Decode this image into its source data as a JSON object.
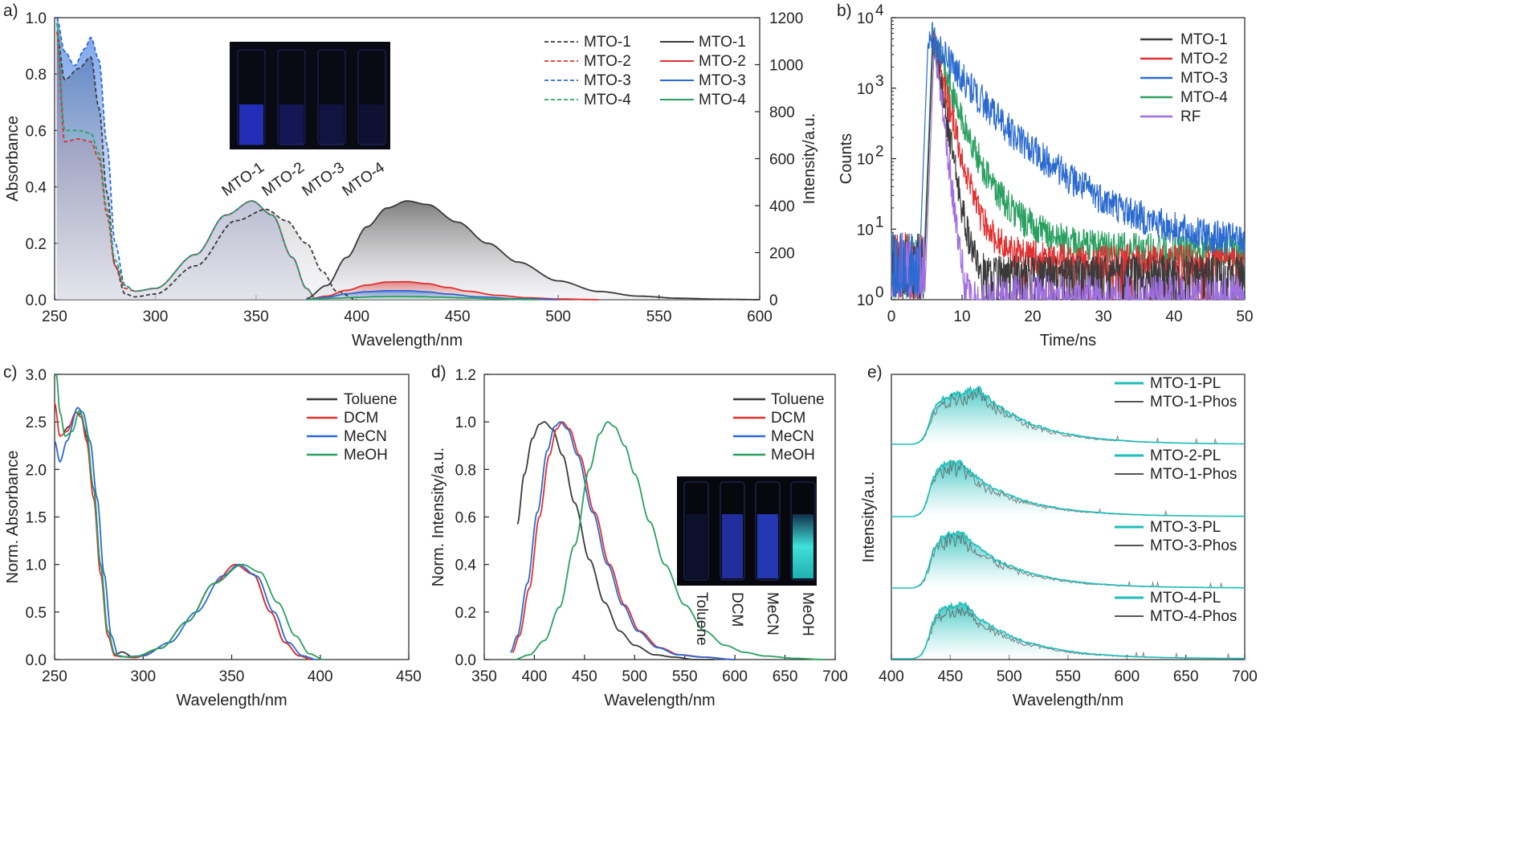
{
  "chart_data": [
    {
      "panel": "a)",
      "type": "line",
      "xlabel": "Wavelength/nm",
      "ylabel": "Absorbance",
      "y2label": "Intensity/a.u.",
      "xlim": [
        250,
        600
      ],
      "ylim": [
        0,
        1.0
      ],
      "y2lim": [
        0,
        1200
      ],
      "xticks": [
        250,
        300,
        350,
        400,
        450,
        500,
        550,
        600
      ],
      "yticks": [
        0.0,
        0.2,
        0.4,
        0.6,
        0.8,
        1.0
      ],
      "y2ticks": [
        0,
        200,
        400,
        600,
        800,
        1000,
        1200
      ],
      "legend_position": "top-right",
      "inset_labels": [
        "MTO-1",
        "MTO-2",
        "MTO-3",
        "MTO-4"
      ],
      "series": [
        {
          "name": "MTO-1",
          "kind": "absorbance",
          "style": "dashed",
          "color": "#3a3a3a",
          "x": [
            251,
            255,
            262,
            268,
            272,
            276,
            280,
            285,
            290,
            300,
            320,
            340,
            355,
            365,
            375,
            383,
            390,
            400
          ],
          "y": [
            0.95,
            0.78,
            0.82,
            0.86,
            0.68,
            0.38,
            0.12,
            0.02,
            0.01,
            0.02,
            0.12,
            0.28,
            0.32,
            0.28,
            0.2,
            0.1,
            0.03,
            0.0
          ]
        },
        {
          "name": "MTO-2",
          "kind": "absorbance",
          "style": "dashed",
          "color": "#e03030",
          "x": [
            251,
            255,
            262,
            268,
            272,
            276,
            280,
            285,
            290,
            300,
            320,
            335,
            348,
            358,
            368,
            375,
            380
          ],
          "y": [
            0.95,
            0.56,
            0.57,
            0.56,
            0.5,
            0.3,
            0.12,
            0.04,
            0.03,
            0.04,
            0.16,
            0.3,
            0.35,
            0.3,
            0.15,
            0.04,
            0.0
          ]
        },
        {
          "name": "MTO-3",
          "kind": "absorbance",
          "style": "dashed",
          "color": "#2a6ad0",
          "x": [
            251,
            255,
            260,
            265,
            268,
            272,
            276,
            280,
            285,
            290,
            300,
            320,
            335,
            348,
            358,
            368,
            375,
            380
          ],
          "y": [
            1.0,
            0.88,
            0.83,
            0.89,
            0.93,
            0.85,
            0.55,
            0.2,
            0.05,
            0.03,
            0.04,
            0.16,
            0.3,
            0.35,
            0.3,
            0.15,
            0.04,
            0.0
          ]
        },
        {
          "name": "MTO-4",
          "kind": "absorbance",
          "style": "dashed",
          "color": "#2aa060",
          "x": [
            251,
            255,
            262,
            268,
            272,
            276,
            280,
            285,
            290,
            300,
            320,
            335,
            348,
            358,
            368,
            375,
            380
          ],
          "y": [
            0.98,
            0.6,
            0.6,
            0.59,
            0.52,
            0.32,
            0.14,
            0.05,
            0.03,
            0.04,
            0.16,
            0.3,
            0.35,
            0.3,
            0.15,
            0.04,
            0.0
          ]
        },
        {
          "name": "MTO-1",
          "kind": "emission",
          "style": "solid",
          "color": "#3a3a3a",
          "x": [
            375,
            385,
            395,
            405,
            415,
            425,
            435,
            450,
            465,
            480,
            500,
            520,
            540,
            560,
            580,
            600
          ],
          "y": [
            5,
            60,
            180,
            310,
            390,
            420,
            405,
            330,
            240,
            160,
            80,
            35,
            15,
            6,
            2,
            0
          ]
        },
        {
          "name": "MTO-2",
          "kind": "emission",
          "style": "solid",
          "color": "#e03030",
          "x": [
            375,
            385,
            395,
            405,
            415,
            425,
            435,
            445,
            455,
            470,
            485,
            500,
            520
          ],
          "y": [
            0,
            15,
            40,
            62,
            75,
            76,
            68,
            52,
            36,
            18,
            8,
            3,
            0
          ]
        },
        {
          "name": "MTO-3",
          "kind": "emission",
          "style": "solid",
          "color": "#2a6ad0",
          "x": [
            375,
            385,
            395,
            405,
            415,
            425,
            435,
            445,
            460,
            480,
            500
          ],
          "y": [
            0,
            10,
            25,
            34,
            38,
            38,
            33,
            24,
            12,
            4,
            0
          ]
        },
        {
          "name": "MTO-4",
          "kind": "emission",
          "style": "solid",
          "color": "#2aa060",
          "x": [
            375,
            390,
            400,
            410,
            420,
            430,
            440,
            455,
            470,
            490
          ],
          "y": [
            0,
            6,
            10,
            13,
            14,
            13,
            11,
            7,
            3,
            0
          ]
        }
      ]
    },
    {
      "panel": "b)",
      "type": "line",
      "xlabel": "Time/ns",
      "ylabel": "Counts",
      "xlim": [
        0,
        50
      ],
      "ylim": [
        1,
        10000
      ],
      "yscale": "log",
      "xticks": [
        0,
        10,
        20,
        30,
        40,
        50
      ],
      "yticks": [
        1,
        10,
        100,
        1000,
        10000
      ],
      "yticklabels": [
        "10",
        "10",
        "10",
        "10",
        "10"
      ],
      "ytickexps": [
        "0",
        "1",
        "2",
        "3",
        "4"
      ],
      "legend_position": "top-right",
      "series": [
        {
          "name": "MTO-1",
          "color": "#3a3a3a",
          "peak_x": 5.9,
          "peak": 5000,
          "tau": 1.6,
          "floor": 2.5
        },
        {
          "name": "MTO-2",
          "color": "#e03030",
          "peak_x": 5.9,
          "peak": 5000,
          "tau": 2.2,
          "floor": 3.5
        },
        {
          "name": "MTO-3",
          "color": "#2a6ad0",
          "peak_x": 5.2,
          "peak": 5000,
          "tau": 6.5,
          "floor": 6
        },
        {
          "name": "MTO-4",
          "color": "#2aa060",
          "peak_x": 5.8,
          "peak": 5000,
          "tau": 3.2,
          "floor": 5
        },
        {
          "name": "RF",
          "color": "#a070e0",
          "peak_x": 6.1,
          "peak": 5000,
          "tau": 1.1,
          "floor": 1.3
        }
      ]
    },
    {
      "panel": "c)",
      "type": "line",
      "xlabel": "Wavelength/nm",
      "ylabel": "Norm. Absorbance",
      "xlim": [
        250,
        450
      ],
      "ylim": [
        0,
        3.0
      ],
      "xticks": [
        250,
        300,
        350,
        400,
        450
      ],
      "yticks": [
        0.0,
        0.5,
        1.0,
        1.5,
        2.0,
        2.5,
        3.0
      ],
      "legend_position": "top-right",
      "series": [
        {
          "name": "Toluene",
          "color": "#3a3a3a",
          "x": [
            255,
            258,
            262,
            265,
            268,
            272,
            276,
            280,
            284,
            288,
            295,
            310,
            325,
            340,
            352,
            362,
            372,
            380,
            388,
            395
          ],
          "y": [
            2.4,
            2.45,
            2.6,
            2.58,
            2.35,
            1.8,
            1.0,
            0.3,
            0.05,
            0.08,
            0.02,
            0.12,
            0.4,
            0.8,
            1.0,
            0.9,
            0.5,
            0.18,
            0.04,
            0.0
          ]
        },
        {
          "name": "DCM",
          "color": "#e03030",
          "x": [
            250,
            253,
            257,
            262,
            265,
            268,
            272,
            276,
            280,
            284,
            288,
            295,
            310,
            325,
            340,
            352,
            362,
            372,
            380,
            388,
            395
          ],
          "y": [
            2.7,
            2.35,
            2.4,
            2.6,
            2.55,
            2.3,
            1.7,
            0.9,
            0.25,
            0.04,
            0.03,
            0.02,
            0.12,
            0.4,
            0.8,
            1.0,
            0.9,
            0.5,
            0.18,
            0.04,
            0.0
          ]
        },
        {
          "name": "MeCN",
          "color": "#2a6ad0",
          "x": [
            250,
            253,
            257,
            263,
            266,
            270,
            274,
            278,
            282,
            286,
            290,
            300,
            315,
            330,
            345,
            354,
            364,
            374,
            382,
            390,
            398
          ],
          "y": [
            2.3,
            2.08,
            2.3,
            2.65,
            2.6,
            2.3,
            1.7,
            0.9,
            0.25,
            0.04,
            0.03,
            0.04,
            0.18,
            0.5,
            0.88,
            1.0,
            0.88,
            0.5,
            0.18,
            0.04,
            0.0
          ]
        },
        {
          "name": "MeOH",
          "color": "#2aa060",
          "x": [
            251,
            253,
            256,
            260,
            264,
            268,
            272,
            276,
            280,
            284,
            288,
            295,
            310,
            325,
            340,
            356,
            366,
            376,
            386,
            394,
            402
          ],
          "y": [
            3.0,
            2.6,
            2.35,
            2.4,
            2.62,
            2.4,
            1.8,
            1.0,
            0.3,
            0.06,
            0.03,
            0.03,
            0.12,
            0.4,
            0.8,
            1.0,
            0.92,
            0.6,
            0.25,
            0.06,
            0.0
          ]
        }
      ]
    },
    {
      "panel": "d)",
      "type": "line",
      "xlabel": "Wavelength/nm",
      "ylabel": "Norm. Intensity/a.u.",
      "xlim": [
        350,
        700
      ],
      "ylim": [
        0,
        1.2
      ],
      "xticks": [
        350,
        400,
        450,
        500,
        550,
        600,
        650,
        700
      ],
      "yticks": [
        0.0,
        0.2,
        0.4,
        0.6,
        0.8,
        1.0,
        1.2
      ],
      "legend_position": "top-right",
      "inset_labels": [
        "Toluene",
        "DCM",
        "MeCN",
        "MeOH"
      ],
      "series": [
        {
          "name": "Toluene",
          "color": "#3a3a3a",
          "x": [
            383,
            390,
            398,
            405,
            410,
            418,
            428,
            440,
            455,
            470,
            485,
            500,
            520,
            540,
            560,
            580
          ],
          "y": [
            0.57,
            0.78,
            0.93,
            0.99,
            1.0,
            0.97,
            0.86,
            0.66,
            0.42,
            0.24,
            0.12,
            0.06,
            0.02,
            0.01,
            0.0,
            0.0
          ]
        },
        {
          "name": "DCM",
          "color": "#e03030",
          "x": [
            378,
            385,
            395,
            405,
            415,
            422,
            428,
            435,
            445,
            460,
            475,
            490,
            505,
            525,
            545,
            570,
            600
          ],
          "y": [
            0.03,
            0.1,
            0.3,
            0.6,
            0.86,
            0.97,
            1.0,
            0.97,
            0.86,
            0.62,
            0.4,
            0.23,
            0.12,
            0.05,
            0.02,
            0.01,
            0.0
          ]
        },
        {
          "name": "MeCN",
          "color": "#2a6ad0",
          "x": [
            376,
            383,
            393,
            403,
            413,
            420,
            426,
            433,
            443,
            458,
            473,
            488,
            503,
            523,
            543,
            568,
            600
          ],
          "y": [
            0.03,
            0.1,
            0.32,
            0.62,
            0.88,
            0.98,
            1.0,
            0.97,
            0.86,
            0.62,
            0.4,
            0.23,
            0.12,
            0.05,
            0.02,
            0.01,
            0.0
          ]
        },
        {
          "name": "MeOH",
          "color": "#2aa060",
          "x": [
            380,
            395,
            410,
            425,
            440,
            455,
            465,
            473,
            480,
            490,
            500,
            515,
            530,
            550,
            570,
            590,
            610,
            630,
            660,
            690
          ],
          "y": [
            0.0,
            0.02,
            0.08,
            0.22,
            0.48,
            0.8,
            0.95,
            1.0,
            0.98,
            0.9,
            0.78,
            0.58,
            0.4,
            0.23,
            0.12,
            0.06,
            0.03,
            0.015,
            0.005,
            0.0
          ]
        }
      ]
    },
    {
      "panel": "e)",
      "type": "area",
      "xlabel": "Wavelength/nm",
      "ylabel": "Intensity/a.u.",
      "xlim": [
        400,
        700
      ],
      "xticks": [
        400,
        450,
        500,
        550,
        600,
        650,
        700
      ],
      "legend_position": "right",
      "groups": [
        {
          "pl_name": "MTO-1-PL",
          "phos_name": "MTO-1-Phos",
          "peak_x": 475
        },
        {
          "pl_name": "MTO-2-PL",
          "phos_name": "MTO-1-Phos",
          "peak_x": 458
        },
        {
          "pl_name": "MTO-3-PL",
          "phos_name": "MTO-3-Phos",
          "peak_x": 460
        },
        {
          "pl_name": "MTO-4-PL",
          "phos_name": "MTO-4-Phos",
          "peak_x": 462
        }
      ],
      "pl_color": "#1ebdb9",
      "phos_color": "#555555"
    }
  ]
}
